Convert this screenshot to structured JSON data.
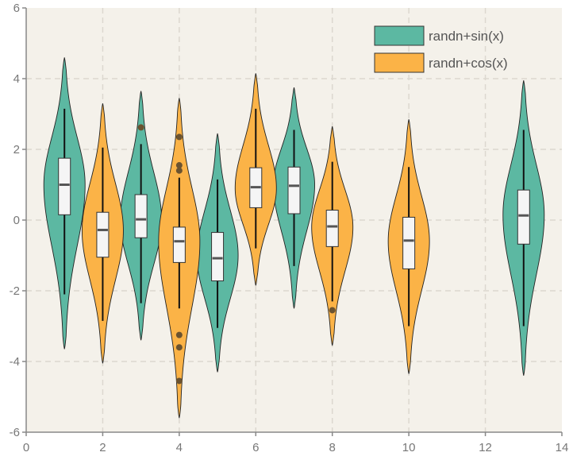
{
  "chart_data": {
    "type": "violin",
    "title": "",
    "xlabel": "",
    "ylabel": "",
    "xlim": [
      0,
      14
    ],
    "ylim": [
      -6,
      6
    ],
    "xticks": [
      0,
      2,
      4,
      6,
      8,
      10,
      12,
      14
    ],
    "yticks": [
      -6,
      -4,
      -2,
      0,
      2,
      4,
      6
    ],
    "grid": true,
    "legend_position": "top-right",
    "series": [
      {
        "name": "randn+sin(x)",
        "color": "#5cb8a2",
        "violins": [
          {
            "x": 1,
            "min": -3.65,
            "max": 4.6,
            "whisker_low": -2.1,
            "q1": 0.15,
            "median": 1.0,
            "q3": 1.75,
            "whisker_high": 3.15,
            "outliers": [],
            "mode": 1.0
          },
          {
            "x": 3,
            "min": -3.4,
            "max": 3.65,
            "whisker_low": -2.35,
            "q1": -0.5,
            "median": 0.02,
            "q3": 0.72,
            "whisker_high": 2.15,
            "outliers": [
              2.62
            ],
            "mode": 0.0
          },
          {
            "x": 5,
            "min": -4.3,
            "max": 2.45,
            "whisker_low": -3.05,
            "q1": -1.72,
            "median": -1.08,
            "q3": -0.35,
            "whisker_high": 1.15,
            "outliers": [],
            "mode": -1.0
          },
          {
            "x": 7,
            "min": -2.5,
            "max": 3.75,
            "whisker_low": -1.3,
            "q1": 0.18,
            "median": 0.97,
            "q3": 1.5,
            "whisker_high": 2.55,
            "outliers": [],
            "mode": 1.0
          },
          {
            "x": 13,
            "min": -4.4,
            "max": 3.95,
            "whisker_low": -3.0,
            "q1": -0.68,
            "median": 0.13,
            "q3": 0.85,
            "whisker_high": 2.55,
            "outliers": [],
            "mode": 0.15
          }
        ]
      },
      {
        "name": "randn+cos(x)",
        "color": "#fbb347",
        "violins": [
          {
            "x": 2,
            "min": -4.05,
            "max": 3.3,
            "whisker_low": -2.85,
            "q1": -1.05,
            "median": -0.28,
            "q3": 0.22,
            "whisker_high": 2.05,
            "outliers": [],
            "mode": -0.3
          },
          {
            "x": 4,
            "min": -5.6,
            "max": 3.45,
            "whisker_low": -2.5,
            "q1": -1.2,
            "median": -0.6,
            "q3": -0.2,
            "whisker_high": 1.2,
            "outliers": [
              2.35,
              1.55,
              1.4,
              -3.25,
              -3.6,
              -4.55
            ],
            "mode": -0.6
          },
          {
            "x": 6,
            "min": -1.85,
            "max": 4.15,
            "whisker_low": -0.8,
            "q1": 0.35,
            "median": 0.93,
            "q3": 1.48,
            "whisker_high": 3.15,
            "outliers": [],
            "mode": 0.9
          },
          {
            "x": 8,
            "min": -3.55,
            "max": 2.65,
            "whisker_low": -2.3,
            "q1": -0.75,
            "median": -0.18,
            "q3": 0.28,
            "whisker_high": 1.65,
            "outliers": [
              -2.55
            ],
            "mode": -0.2
          },
          {
            "x": 10,
            "min": -4.35,
            "max": 2.85,
            "whisker_low": -3.0,
            "q1": -1.38,
            "median": -0.58,
            "q3": 0.08,
            "whisker_high": 1.5,
            "outliers": [],
            "mode": -0.6
          }
        ]
      }
    ]
  }
}
